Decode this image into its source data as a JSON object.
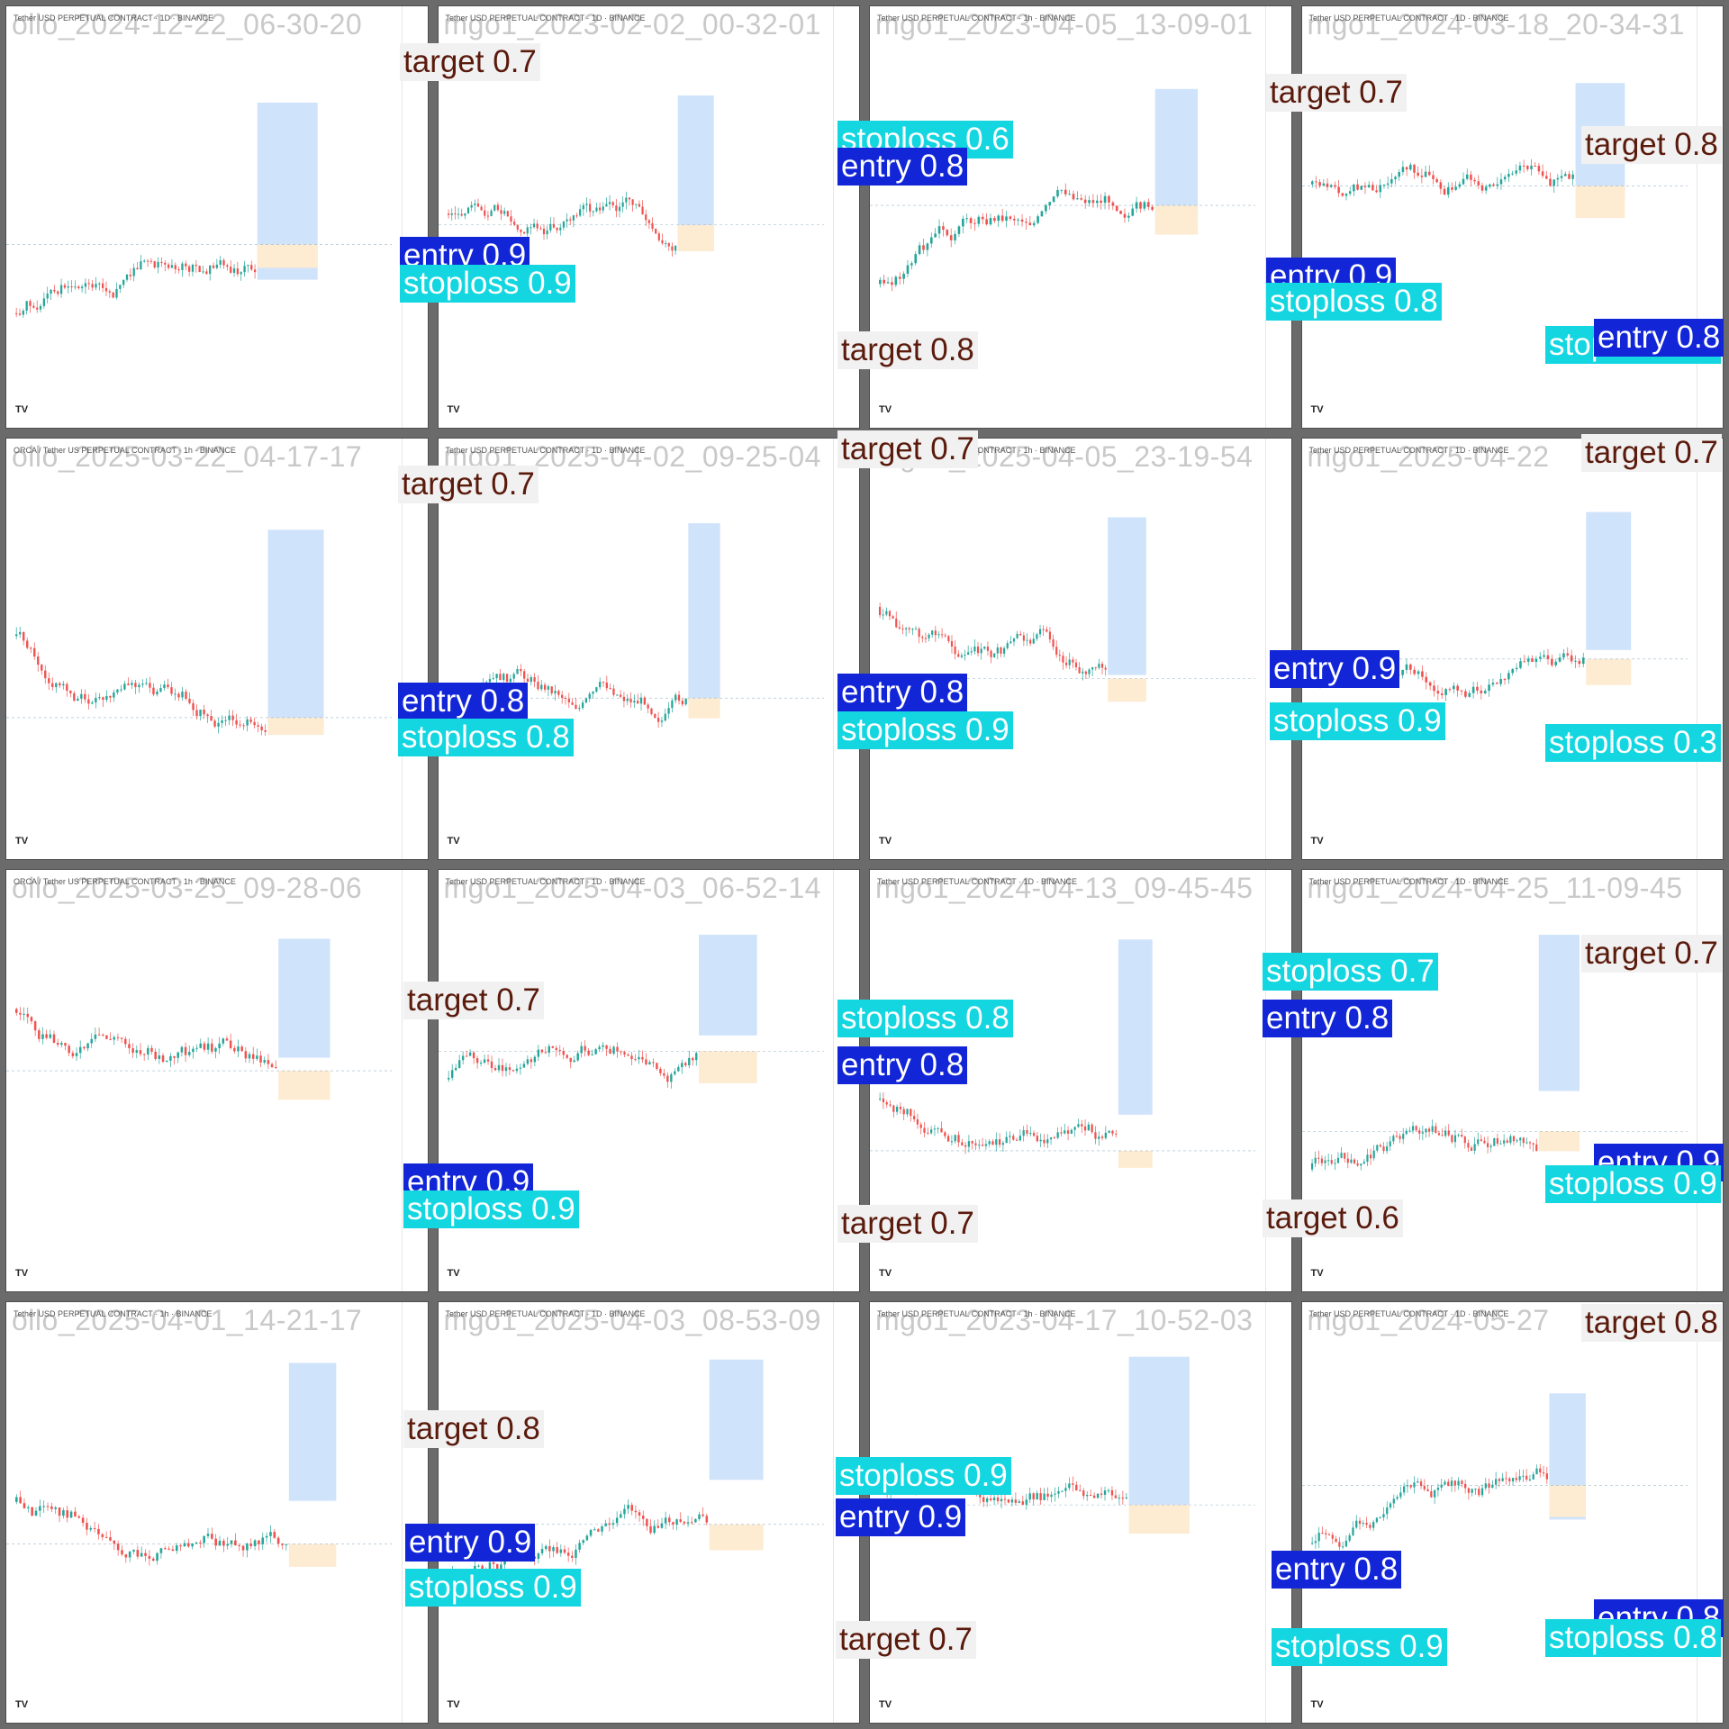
{
  "colors": {
    "entry_bg": "#1226d8",
    "stoploss_bg": "#14d6e0",
    "target_bg": "#f1f1f1",
    "target_text": "#5a1a0c",
    "profit_zone": "#cfe3fb",
    "loss_zone": "#fdebd2",
    "candle_up": "#26a69a",
    "candle_down": "#ef5350"
  },
  "panels": [
    {
      "watermark": "ollo_2024-12-22_06-30-20",
      "header": "Tether USD PERPETUAL CONTRACT · 1D · BINANCE"
    },
    {
      "watermark": "mgo1_2023-02-02_00-32-01",
      "header": "Tether USD PERPETUAL CONTRACT · 1D · BINANCE"
    },
    {
      "watermark": "mgo1_2023-04-05_13-09-01",
      "header": "Tether USD PERPETUAL CONTRACT · 1h · BINANCE"
    },
    {
      "watermark": "mgo1_2024-03-18_20-34-31",
      "header": "Tether USD PERPETUAL CONTRACT · 1D · BINANCE"
    },
    {
      "watermark": "ollo_2025-03-22_04-17-17",
      "header": "ORCA / Tether US PERPETUAL CONTRACT · 1h · BINANCE"
    },
    {
      "watermark": "mgo1_2025-04-02_09-25-04",
      "header": "Tether USD PERPETUAL CONTRACT · 1D · BINANCE"
    },
    {
      "watermark": "mgo1_2025-04-05_23-19-54",
      "header": "Tether USD PERPETUAL CONTRACT · 1h · BINANCE"
    },
    {
      "watermark": "mgo1_2025-04-22",
      "header": "Tether USD PERPETUAL CONTRACT · 1D · BINANCE"
    },
    {
      "watermark": "ollo_2025-03-25_09-28-06",
      "header": "ORCA / Tether US PERPETUAL CONTRACT · 1h · BINANCE"
    },
    {
      "watermark": "mgo1_2025-04-03_06-52-14",
      "header": "Tether USD PERPETUAL CONTRACT · 1D · BINANCE"
    },
    {
      "watermark": "mgo1_2024-04-13_09-45-45",
      "header": "Tether USD PERPETUAL CONTRACT · 1D · BINANCE"
    },
    {
      "watermark": "mgo1_2024-04-25_11-09-45",
      "header": "Tether USD PERPETUAL CONTRACT · 1D · BINANCE"
    },
    {
      "watermark": "ollo_2025-04-01_14-21-17",
      "header": "Tether USD PERPETUAL CONTRACT · 1h · BINANCE"
    },
    {
      "watermark": "mgo1_2025-04-03_08-53-09",
      "header": "Tether USD PERPETUAL CONTRACT · 1D · BINANCE"
    },
    {
      "watermark": "mgo1_2023-04-17_10-52-03",
      "header": "Tether USD PERPETUAL CONTRACT · 1h · BINANCE"
    },
    {
      "watermark": "mgo1_2024-05-27",
      "header": "Tether USD PERPETUAL CONTRACT · 1D · BINANCE"
    }
  ],
  "detections": [
    {
      "label": "target 0.7"
    },
    {
      "label": "stoploss 0.6"
    },
    {
      "label": "entry 0.8"
    },
    {
      "label": "entry 0.9"
    },
    {
      "label": "stoploss 0.9"
    },
    {
      "label": "target 0.8"
    },
    {
      "label": "target 0.7"
    },
    {
      "label": "target 0.8"
    },
    {
      "label": "entry 0.9"
    },
    {
      "label": "stoploss 0.8"
    },
    {
      "label": "stoploss 0.8"
    },
    {
      "label": "entry 0.8"
    },
    {
      "label": "target 0.7"
    },
    {
      "label": "target 0.7"
    },
    {
      "label": "target 0.7"
    },
    {
      "label": "entry 0.8"
    },
    {
      "label": "stoploss 0.8"
    },
    {
      "label": "entry 0.8"
    },
    {
      "label": "stoploss 0.9"
    },
    {
      "label": "entry 0.9"
    },
    {
      "label": "stoploss 0.9"
    },
    {
      "label": "stoploss 0.3"
    },
    {
      "label": "target 0.7"
    },
    {
      "label": "stoploss 0.8"
    },
    {
      "label": "entry 0.8"
    },
    {
      "label": "stoploss 0.7"
    },
    {
      "label": "entry 0.8"
    },
    {
      "label": "target 0.7"
    },
    {
      "label": "entry 0.9"
    },
    {
      "label": "stoploss 0.9"
    },
    {
      "label": "target 0.7"
    },
    {
      "label": "target 0.6"
    },
    {
      "label": "entry 0.9"
    },
    {
      "label": "stoploss 0.9"
    },
    {
      "label": "target 0.8"
    },
    {
      "label": "stoploss 0.9"
    },
    {
      "label": "entry 0.9"
    },
    {
      "label": "entry 0.9"
    },
    {
      "label": "stoploss 0.9"
    },
    {
      "label": "target 0.7"
    },
    {
      "label": "entry 0.8"
    },
    {
      "label": "stoploss 0.9"
    },
    {
      "label": "target 0.8"
    },
    {
      "label": "entry 0.8"
    },
    {
      "label": "stoploss 0.8"
    }
  ]
}
